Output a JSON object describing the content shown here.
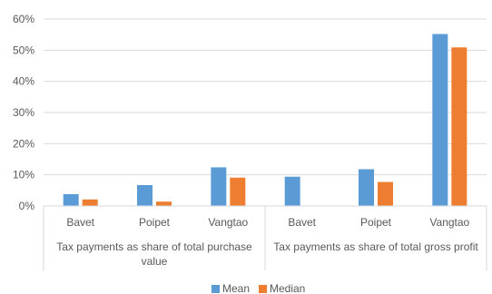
{
  "chart_data": {
    "type": "bar",
    "title": "",
    "xlabel": "",
    "ylabel": "",
    "ylim": [
      0,
      0.6
    ],
    "y_ticks": [
      "0%",
      "10%",
      "20%",
      "30%",
      "40%",
      "50%",
      "60%"
    ],
    "grid": true,
    "legend_position": "bottom",
    "groups": [
      {
        "label_lines": [
          "Tax payments as share of total purchase",
          "value"
        ],
        "categories": [
          "Bavet",
          "Poipet",
          "Vangtao"
        ]
      },
      {
        "label_lines": [
          "Tax payments as share of total gross profit"
        ],
        "categories": [
          "Bavet",
          "Poipet",
          "Vangtao"
        ]
      }
    ],
    "series": [
      {
        "name": "Mean",
        "color": "#5B9BD5",
        "values": [
          0.038,
          0.067,
          0.124,
          0.094,
          0.118,
          0.552
        ]
      },
      {
        "name": "Median",
        "color": "#ED7D31",
        "values": [
          0.021,
          0.014,
          0.091,
          null,
          0.077,
          0.509
        ]
      }
    ]
  }
}
